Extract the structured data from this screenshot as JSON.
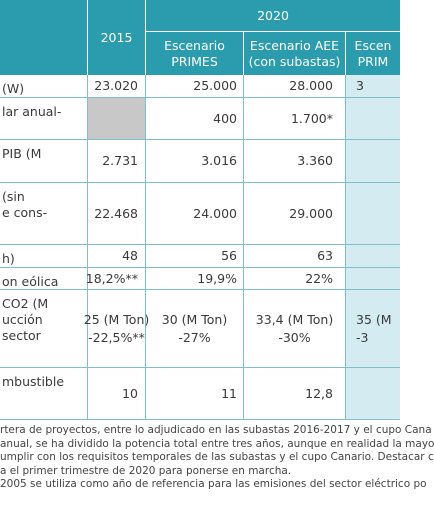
{
  "header": {
    "year": "2020",
    "columns": [
      [
        "2015"
      ],
      [
        "Escenario",
        "PRIMES"
      ],
      [
        "Escenario AEE",
        "(con subastas)"
      ],
      [
        "Escen",
        "PRIM"
      ]
    ]
  },
  "rows": [
    {
      "label": [
        "(W)"
      ],
      "cells": [
        [
          "23.020"
        ],
        [
          "25.000"
        ],
        [
          "28.000"
        ],
        [
          "3"
        ]
      ]
    },
    {
      "label": [
        "lar anual-"
      ],
      "cells": [
        null,
        [
          "400"
        ],
        [
          "1.700*"
        ],
        null
      ]
    },
    {
      "label": [
        "PIB (M"
      ],
      "cells": [
        [
          "2.731"
        ],
        [
          "3.016"
        ],
        [
          "3.360"
        ],
        null
      ]
    },
    {
      "label": [
        "(sin",
        "e cons-"
      ],
      "cells": [
        [
          "22.468"
        ],
        [
          "24.000"
        ],
        [
          "29.000"
        ],
        null
      ]
    },
    {
      "label": [
        "h)"
      ],
      "cells": [
        [
          "48"
        ],
        [
          "56"
        ],
        [
          "63"
        ],
        null
      ]
    },
    {
      "label": [
        "on eólica"
      ],
      "cells": [
        [
          "18,2%**"
        ],
        [
          "19,9%"
        ],
        [
          "22%"
        ],
        null
      ]
    },
    {
      "label": [
        "CO2 (M",
        "ucción",
        "sector"
      ],
      "cells": [
        [
          "25 (M Ton)",
          "-22,5%**"
        ],
        [
          "30 (M Ton)",
          "-27%"
        ],
        [
          "33,4 (M Ton)",
          "-30%"
        ],
        [
          "35 (M",
          "-3"
        ]
      ]
    },
    {
      "label": [
        "mbustible"
      ],
      "cells": [
        [
          "10"
        ],
        [
          "11"
        ],
        [
          "12,8"
        ],
        null
      ]
    }
  ],
  "footnotes": [
    "rtera de proyectos, entre lo adjudicado en las subastas 2016-2017 y el cupo Cana",
    "anual, se ha dividido la potencia total entre tres años, aunque en realidad la mayo",
    "umplir con los requisitos temporales de las subastas y el cupo Canario. Destacar c",
    "a el primer trimestre de 2020 para ponerse en marcha.",
    "2005 se utiliza como año de referencia para las emisiones del sector eléctrico po"
  ]
}
